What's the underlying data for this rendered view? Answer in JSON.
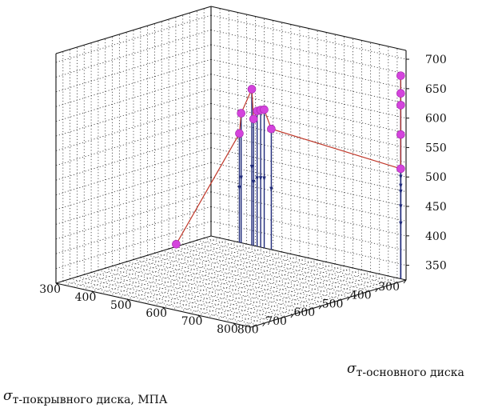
{
  "chart_data": {
    "type": "scatter",
    "dimensions": 3,
    "title": "",
    "xlabel": "σт-покрывного диска, МПА",
    "xlabel_symbol": "σ",
    "xlabel_text": "т-покрывного диска, МПА",
    "ylabel": "σт-основного диска",
    "ylabel_symbol": "σ",
    "ylabel_text": "т-основного диска",
    "zlabel": "",
    "xlim": [
      300,
      850
    ],
    "ylim": [
      300,
      850
    ],
    "zlim": [
      325,
      715
    ],
    "x_ticks": [
      300,
      400,
      500,
      600,
      700,
      800
    ],
    "y_ticks": [
      300,
      400,
      500,
      600,
      700,
      800
    ],
    "z_ticks": [
      350,
      400,
      450,
      500,
      550,
      600,
      650,
      700
    ],
    "grid": true,
    "series": [
      {
        "line_color": "#c0392b",
        "marker_color": "#d444dd",
        "drop_color": "#1f2a7a",
        "points": [
          {
            "x": 455,
            "y": 325,
            "z": 337
          },
          {
            "x": 300,
            "y": 380,
            "z": 510
          },
          {
            "x": 300,
            "y": 385,
            "z": 545
          },
          {
            "x": 300,
            "y": 415,
            "z": 590
          },
          {
            "x": 300,
            "y": 420,
            "z": 540
          },
          {
            "x": 300,
            "y": 430,
            "z": 555
          },
          {
            "x": 300,
            "y": 440,
            "z": 558
          },
          {
            "x": 300,
            "y": 450,
            "z": 560
          },
          {
            "x": 300,
            "y": 470,
            "z": 530
          },
          {
            "x": 300,
            "y": 835,
            "z": 512
          },
          {
            "x": 300,
            "y": 835,
            "z": 570
          },
          {
            "x": 300,
            "y": 835,
            "z": 620
          },
          {
            "x": 300,
            "y": 835,
            "z": 640
          },
          {
            "x": 300,
            "y": 835,
            "z": 670
          }
        ]
      }
    ]
  }
}
